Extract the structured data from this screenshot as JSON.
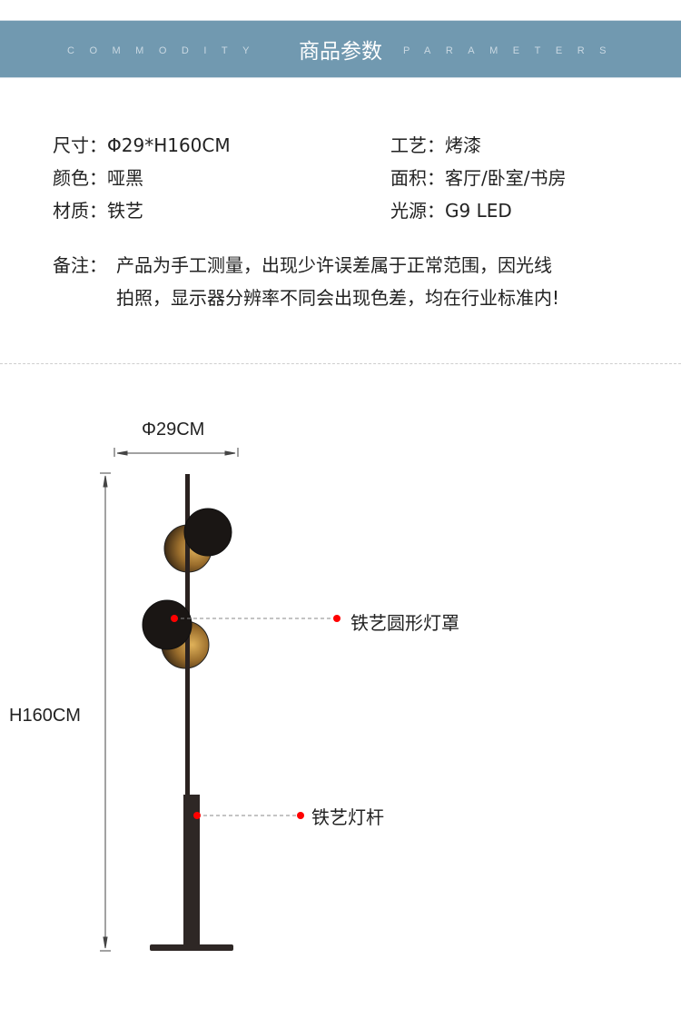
{
  "header": {
    "title": "商品参数",
    "left_en": "COMMODITY",
    "right_en": "PARAMETERS",
    "band_color": "#7199b0"
  },
  "params": {
    "size": "尺寸：Φ29*H160CM",
    "craft": "工艺：烤漆",
    "color": "颜色：哑黑",
    "area": "面积：客厅/卧室/书房",
    "material": "材质：铁艺",
    "light": "光源：G9 LED"
  },
  "note": {
    "label": "备注：",
    "line1": "产品为手工测量，出现少许误差属于正常范围，因光线",
    "line2": "拍照，显示器分辨率不同会出现色差，均在行业标准内!"
  },
  "diagram": {
    "width_label": "Φ29CM",
    "height_label": "H160CM",
    "callout_shade": "铁艺圆形灯罩",
    "callout_pole": "铁艺灯杆",
    "marker_color": "#ff0000"
  }
}
